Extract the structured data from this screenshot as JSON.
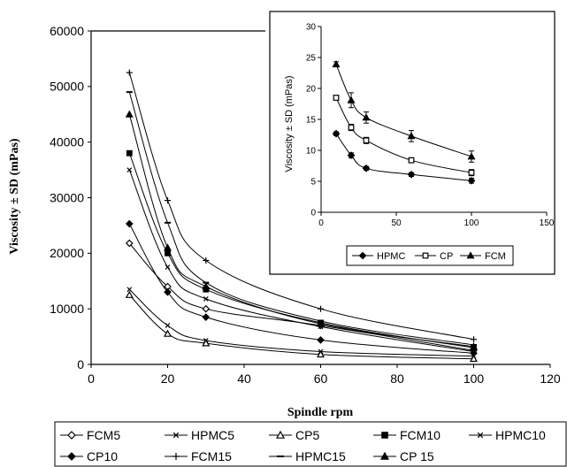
{
  "chart_data": [
    {
      "type": "line",
      "xlabel": "Spindle rpm",
      "ylabel": "Viscosity ± SD (mPas)",
      "xlim": [
        0,
        120
      ],
      "ylim": [
        0,
        60000
      ],
      "xticks": [
        0,
        20,
        40,
        60,
        80,
        100,
        120
      ],
      "yticks": [
        0,
        10000,
        20000,
        30000,
        40000,
        50000,
        60000
      ],
      "xtick_labels": [
        "0",
        "20",
        "40",
        "60",
        "80",
        "100",
        "120"
      ],
      "ytick_labels": [
        "0",
        "10000",
        "20000",
        "30000",
        "40000",
        "50000",
        "60000"
      ],
      "grid": false,
      "legend_position": "bottom",
      "x": [
        10,
        20,
        30,
        60,
        100
      ],
      "series": [
        {
          "name": "FCM5",
          "marker": "diamond-open",
          "values": [
            21800,
            14000,
            10000,
            7000,
            2500
          ]
        },
        {
          "name": "HPMC5",
          "marker": "x",
          "values": [
            13500,
            7000,
            4300,
            2300,
            1500
          ]
        },
        {
          "name": "CP5",
          "marker": "triangle-open",
          "values": [
            12500,
            5500,
            3800,
            1800,
            1000
          ]
        },
        {
          "name": "FCM10",
          "marker": "square",
          "values": [
            38000,
            20000,
            13500,
            7500,
            3000
          ]
        },
        {
          "name": "HPMC10",
          "marker": "x",
          "values": [
            35000,
            17500,
            11800,
            6800,
            2300
          ]
        },
        {
          "name": "CP10",
          "marker": "diamond",
          "values": [
            25300,
            13000,
            8500,
            4400,
            2000
          ]
        },
        {
          "name": "FCM15",
          "marker": "plus",
          "values": [
            52500,
            29500,
            18700,
            10000,
            4500
          ]
        },
        {
          "name": "HPMC15",
          "marker": "dash",
          "values": [
            49000,
            25500,
            14700,
            7800,
            3500
          ]
        },
        {
          "name": "CP 15",
          "marker": "triangle",
          "values": [
            45000,
            21000,
            14000,
            7300,
            3200
          ]
        }
      ]
    },
    {
      "type": "line",
      "xlabel": "",
      "ylabel": "Viscosity ± SD (mPas)",
      "xlim": [
        0,
        150
      ],
      "ylim": [
        0,
        30
      ],
      "xticks": [
        0,
        50,
        100,
        150
      ],
      "yticks": [
        0,
        5,
        10,
        15,
        20,
        25,
        30
      ],
      "xtick_labels": [
        "0",
        "50",
        "100",
        "150"
      ],
      "ytick_labels": [
        "0",
        "5",
        "10",
        "15",
        "20",
        "25",
        "30"
      ],
      "grid": false,
      "legend_position": "bottom",
      "x": [
        10,
        20,
        30,
        60,
        100
      ],
      "series": [
        {
          "name": "HPMC",
          "marker": "diamond",
          "values": [
            12.7,
            9.2,
            7.1,
            6.1,
            5.1
          ],
          "errors": [
            0.3,
            0.4,
            0.3,
            0.3,
            0.4
          ]
        },
        {
          "name": "CP",
          "marker": "square-open",
          "values": [
            18.5,
            13.7,
            11.6,
            8.4,
            6.4
          ],
          "errors": [
            0.3,
            0.5,
            0.5,
            0.4,
            0.5
          ]
        },
        {
          "name": "FCM",
          "marker": "triangle",
          "values": [
            23.9,
            18.1,
            15.3,
            12.3,
            9.0
          ],
          "errors": [
            0.4,
            1.2,
            0.9,
            0.9,
            0.9
          ]
        }
      ]
    }
  ]
}
